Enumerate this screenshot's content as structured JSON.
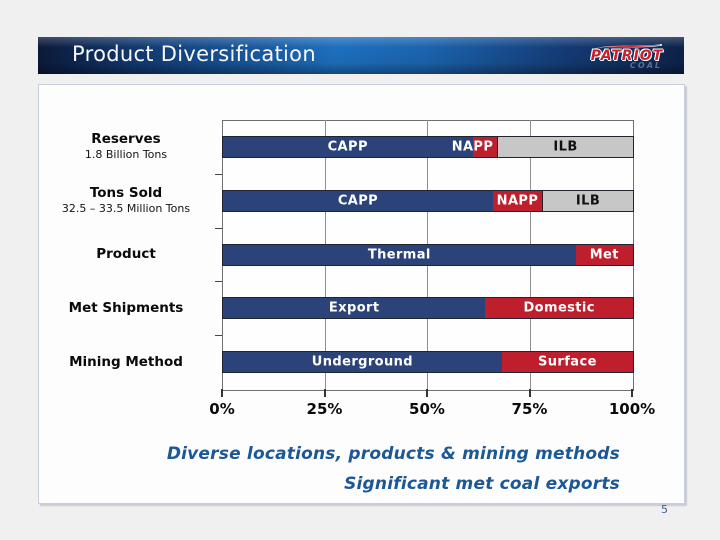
{
  "header": {
    "title": "Product Diversification"
  },
  "logo": {
    "name": "PATRIOT",
    "sub": "COAL"
  },
  "chart_data": {
    "type": "bar",
    "orientation": "horizontal",
    "stacked": true,
    "unit": "percent",
    "xlim": [
      0,
      100
    ],
    "xlabel_ticks": [
      "0%",
      "25%",
      "50%",
      "75%",
      "100%"
    ],
    "grid": "vertical-quarter-lines",
    "colors": {
      "blue": "#2B4379",
      "red": "#BF1E2D",
      "gray": "#C7C7C7"
    },
    "rows": [
      {
        "label": "Reserves",
        "sublabel": "1.8 Billion Tons",
        "segments": [
          {
            "name": "CAPP",
            "value": 61,
            "color": "blue"
          },
          {
            "name": "NAPP",
            "value": 6,
            "color": "red",
            "label_anchor": "start"
          },
          {
            "name": "ILB",
            "value": 33,
            "color": "gray"
          }
        ]
      },
      {
        "label": "Tons Sold",
        "sublabel": "32.5 – 33.5 Million Tons",
        "segments": [
          {
            "name": "CAPP",
            "value": 66,
            "color": "blue"
          },
          {
            "name": "NAPP",
            "value": 12,
            "color": "red"
          },
          {
            "name": "ILB",
            "value": 22,
            "color": "gray"
          }
        ]
      },
      {
        "label": "Product",
        "segments": [
          {
            "name": "Thermal",
            "value": 86,
            "color": "blue"
          },
          {
            "name": "Met",
            "value": 14,
            "color": "red"
          }
        ]
      },
      {
        "label": "Met Shipments",
        "segments": [
          {
            "name": "Export",
            "value": 64,
            "color": "blue"
          },
          {
            "name": "Domestic",
            "value": 36,
            "color": "red"
          }
        ]
      },
      {
        "label": "Mining Method",
        "segments": [
          {
            "name": "Underground",
            "value": 68,
            "color": "blue"
          },
          {
            "name": "Surface",
            "value": 32,
            "color": "red"
          }
        ]
      }
    ]
  },
  "captions": {
    "line1": "Diverse locations, products & mining methods",
    "line2": "Significant met coal exports"
  },
  "page_number": "5"
}
